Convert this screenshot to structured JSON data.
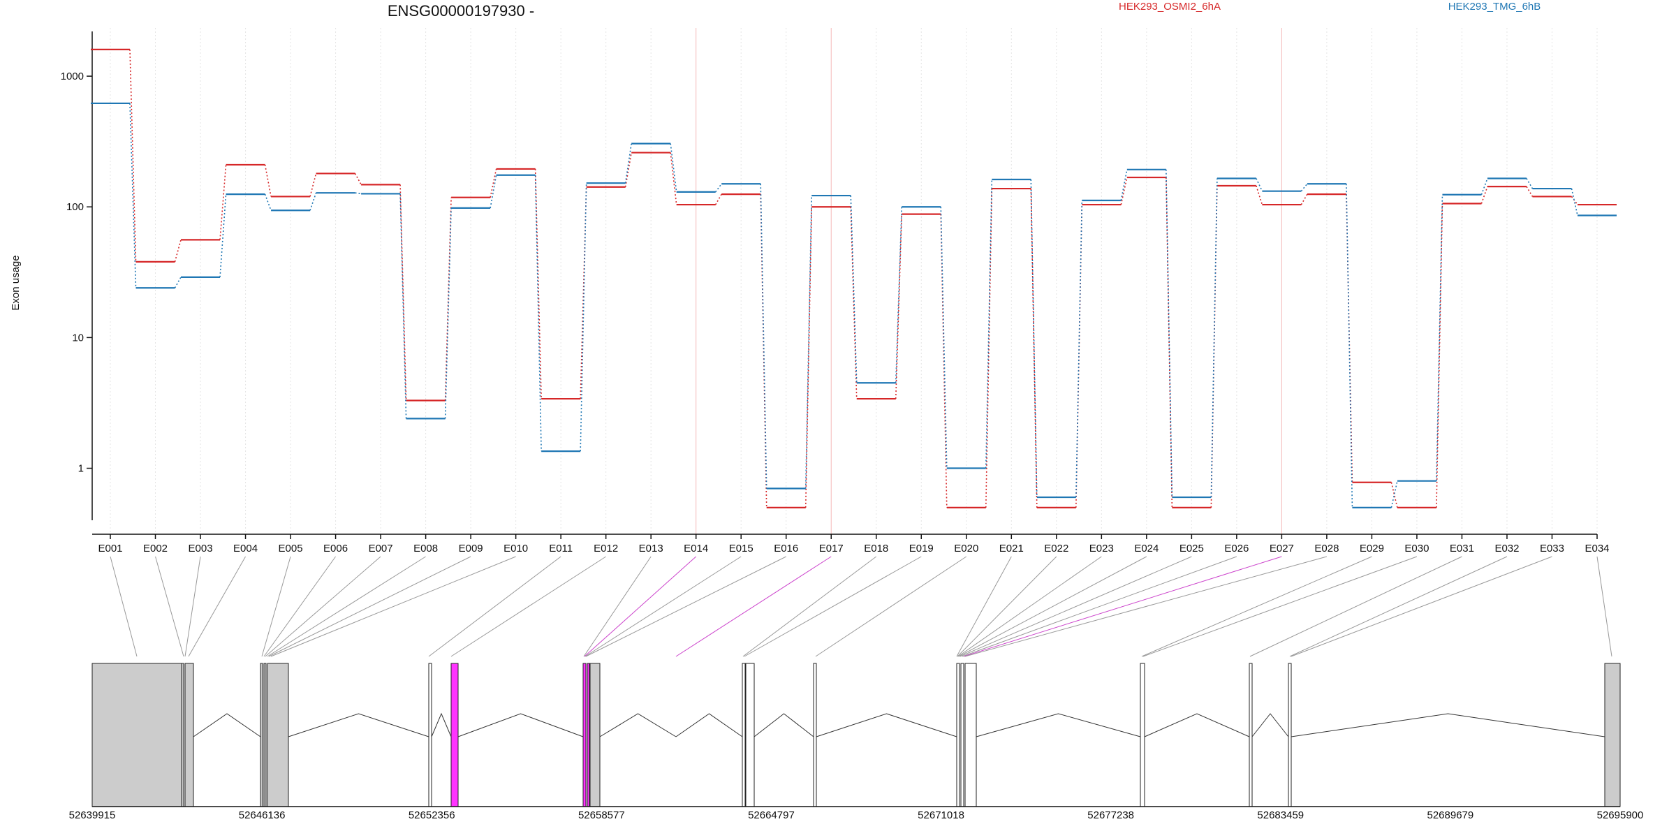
{
  "chart_data": {
    "type": "line",
    "title": "ENSG00000197930 -",
    "ylabel": "Exon usage",
    "xlabel": "",
    "y_scale": "log",
    "ylim": [
      0.4,
      2200
    ],
    "y_ticks": [
      1,
      10,
      100,
      1000
    ],
    "y_tick_labels": [
      "1",
      "10",
      "100",
      "1000"
    ],
    "grid": "vertical dotted lines at each exon; pink where exon is significant",
    "legend_position": "top",
    "categories": [
      "E001",
      "E002",
      "E003",
      "E004",
      "E005",
      "E006",
      "E007",
      "E008",
      "E009",
      "E010",
      "E011",
      "E012",
      "E013",
      "E014",
      "E015",
      "E016",
      "E017",
      "E018",
      "E019",
      "E020",
      "E021",
      "E022",
      "E023",
      "E024",
      "E025",
      "E026",
      "E027",
      "E028",
      "E029",
      "E030",
      "E031",
      "E032",
      "E033",
      "E034"
    ],
    "significant_exons": [
      "E014",
      "E017",
      "E027"
    ],
    "series": [
      {
        "name": "HEK293_OSMI2_6hA",
        "color": "#d62728",
        "values": [
          1600,
          38,
          56,
          210,
          120,
          180,
          148,
          3.3,
          118,
          195,
          3.4,
          142,
          260,
          104,
          125,
          0.5,
          100,
          3.4,
          88,
          0.5,
          138,
          0.5,
          104,
          168,
          0.5,
          145,
          104,
          125,
          0.78,
          0.5,
          106,
          143,
          120,
          104
        ]
      },
      {
        "name": "HEK293_TMG_6hB",
        "color": "#1f77b4",
        "values": [
          620,
          24,
          29,
          125,
          94,
          128,
          126,
          2.4,
          98,
          175,
          1.35,
          152,
          305,
          130,
          150,
          0.7,
          122,
          4.5,
          100,
          1.0,
          162,
          0.6,
          112,
          193,
          0.6,
          165,
          132,
          150,
          0.5,
          0.8,
          124,
          165,
          138,
          86
        ]
      }
    ],
    "gene_model": {
      "genomic_ticks": [
        "52639915",
        "52646136",
        "52652356",
        "52658577",
        "52664797",
        "52671018",
        "52677238",
        "52683459",
        "52689679",
        "52695900"
      ],
      "exon_fill": "#cccccc",
      "significant_fill": "#ff33ff"
    }
  }
}
